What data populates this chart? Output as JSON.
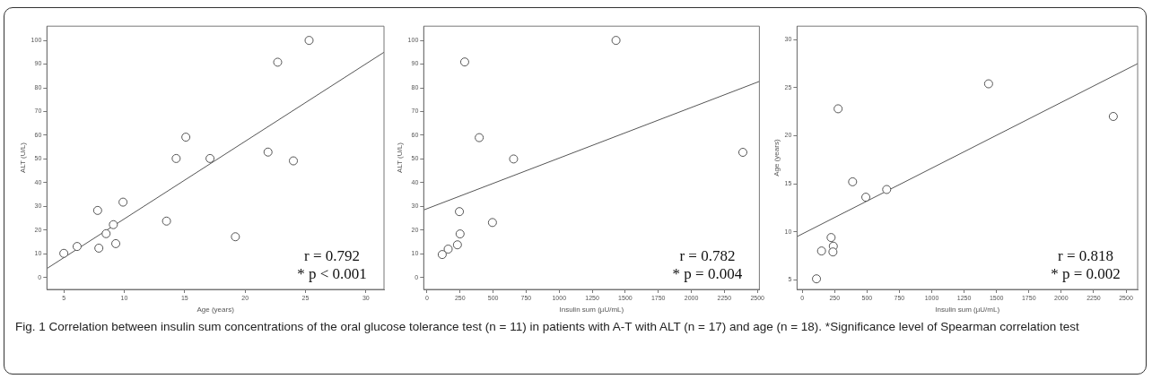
{
  "chart_data": [
    {
      "type": "scatter",
      "xlabel": "Age (years)",
      "ylabel": "ALT (U/L)",
      "xlim": [
        3.6,
        31.5
      ],
      "xticks": [
        5,
        10,
        15,
        20,
        25,
        30
      ],
      "ylim": [
        -5,
        106
      ],
      "yticks": [
        0,
        10,
        20,
        30,
        40,
        50,
        60,
        70,
        80,
        90,
        100
      ],
      "marker": "circle",
      "series": [
        {
          "color": "#555555",
          "x": [
            5.0,
            6.1,
            7.8,
            7.9,
            8.5,
            9.1,
            9.3,
            9.9,
            13.5,
            14.3,
            15.1,
            17.1,
            19.2,
            21.9,
            22.7,
            24.0,
            25.3
          ],
          "values": [
            10.2,
            13.1,
            28.3,
            12.4,
            18.5,
            22.3,
            14.3,
            31.8,
            23.8,
            50.2,
            59.2,
            50.2,
            17.2,
            52.9,
            90.8,
            49.2,
            100
          ]
        },
        {
          "type": "line",
          "color": "#555555",
          "marker": "none",
          "x": [
            3.6,
            31.5
          ],
          "values": [
            3.8,
            95
          ]
        }
      ],
      "annotations": [
        "r = 0.792",
        "* p < 0.001"
      ]
    },
    {
      "type": "scatter",
      "xlabel": "Insulin sum (µU/mL)",
      "ylabel": "ALT (U/L)",
      "xlim": [
        -25,
        2515
      ],
      "xticks": [
        0,
        250,
        500,
        750,
        1000,
        1250,
        1500,
        1750,
        2000,
        2250,
        2500
      ],
      "ylim": [
        -5,
        106
      ],
      "yticks": [
        0,
        10,
        20,
        30,
        40,
        50,
        60,
        70,
        80,
        90,
        100
      ],
      "marker": "circle",
      "series": [
        {
          "color": "#555555",
          "x": [
            115,
            160,
            230,
            250,
            245,
            285,
            395,
            495,
            655,
            1430,
            2390
          ],
          "values": [
            9.7,
            12.0,
            13.8,
            18.4,
            27.8,
            90.9,
            59.0,
            23.2,
            50.0,
            100,
            52.8
          ]
        },
        {
          "type": "line",
          "color": "#555555",
          "marker": "none",
          "x": [
            -25,
            2515
          ],
          "values": [
            28.5,
            82.7
          ]
        }
      ],
      "annotations": [
        "r = 0.782",
        "* p = 0.004"
      ]
    },
    {
      "type": "scatter",
      "xlabel": "Insulin sum (µU/mL)",
      "ylabel": "Age (years)",
      "xlim": [
        -40,
        2590
      ],
      "xticks": [
        0,
        250,
        500,
        750,
        1000,
        1250,
        1500,
        1750,
        2000,
        2250,
        2500
      ],
      "ylim": [
        4,
        31.4
      ],
      "yticks": [
        5,
        10,
        15,
        20,
        25,
        30
      ],
      "marker": "circle",
      "series": [
        {
          "color": "#555555",
          "x": [
            110,
            149,
            223,
            240,
            237,
            277,
            389,
            491,
            652,
            1439,
            2402
          ],
          "values": [
            5.1,
            8.0,
            9.4,
            8.5,
            7.9,
            22.8,
            15.2,
            13.6,
            14.4,
            25.4,
            22.0
          ]
        },
        {
          "type": "line",
          "color": "#555555",
          "marker": "none",
          "x": [
            -40,
            2590
          ],
          "values": [
            9.5,
            27.5
          ]
        }
      ],
      "annotations": [
        "r = 0.818",
        "* p = 0.002",
        "Fig. 1 Correlation between insulin sum concentrations of the oral glucose tolerance test (n = 11) in patients with A-T with ALT (n = 17) and age (n = 18). *Significance level of Spearman correlation test"
      ]
    }
  ]
}
